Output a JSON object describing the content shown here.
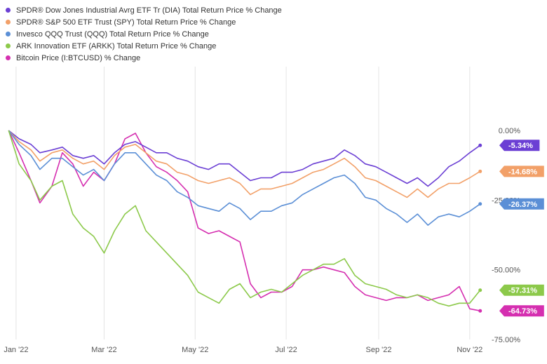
{
  "chart_data": {
    "type": "line",
    "title": "",
    "xlabel": "",
    "ylabel": "",
    "x_ticks": [
      "Jan '22",
      "Mar '22",
      "May '22",
      "Jul '22",
      "Sep '22",
      "Nov '22"
    ],
    "y_ticks": [
      "0.00%",
      "-25.00%",
      "-50.00%",
      "-75.00%"
    ],
    "ylim": [
      -75,
      0
    ],
    "grid": "vertical",
    "legend_position": "top-left",
    "series": [
      {
        "name": "SPDR® Dow Jones Industrial Avrg ETF Tr (DIA) Total Return Price % Change",
        "color": "#6b3fd4",
        "end_label": "-5.34%",
        "x": [
          "2022-01-03",
          "2022-01-10",
          "2022-01-18",
          "2022-01-24",
          "2022-02-01",
          "2022-02-08",
          "2022-02-15",
          "2022-02-22",
          "2022-03-01",
          "2022-03-08",
          "2022-03-15",
          "2022-03-22",
          "2022-03-29",
          "2022-04-05",
          "2022-04-12",
          "2022-04-19",
          "2022-04-26",
          "2022-05-03",
          "2022-05-10",
          "2022-05-17",
          "2022-05-24",
          "2022-05-31",
          "2022-06-07",
          "2022-06-14",
          "2022-06-21",
          "2022-06-28",
          "2022-07-05",
          "2022-07-12",
          "2022-07-19",
          "2022-07-26",
          "2022-08-02",
          "2022-08-09",
          "2022-08-16",
          "2022-08-23",
          "2022-08-30",
          "2022-09-06",
          "2022-09-13",
          "2022-09-20",
          "2022-09-27",
          "2022-10-04",
          "2022-10-11",
          "2022-10-18",
          "2022-10-25",
          "2022-11-01",
          "2022-11-08",
          "2022-11-15"
        ],
        "y": [
          0,
          -3,
          -5,
          -8,
          -7,
          -6,
          -9,
          -10,
          -9,
          -12,
          -8,
          -5,
          -4,
          -6,
          -8,
          -8,
          -10,
          -11,
          -13,
          -14,
          -12,
          -12,
          -15,
          -18,
          -17,
          -17,
          -15,
          -15,
          -14,
          -12,
          -11,
          -10,
          -7,
          -9,
          -12,
          -13,
          -15,
          -17,
          -19,
          -17,
          -20,
          -17,
          -13,
          -11,
          -8,
          -5.34
        ]
      },
      {
        "name": "SPDR® S&P 500 ETF Trust (SPY) Total Return Price % Change",
        "color": "#f2a068",
        "end_label": "-14.68%",
        "x": [
          "2022-01-03",
          "2022-01-10",
          "2022-01-18",
          "2022-01-24",
          "2022-02-01",
          "2022-02-08",
          "2022-02-15",
          "2022-02-22",
          "2022-03-01",
          "2022-03-08",
          "2022-03-15",
          "2022-03-22",
          "2022-03-29",
          "2022-04-05",
          "2022-04-12",
          "2022-04-19",
          "2022-04-26",
          "2022-05-03",
          "2022-05-10",
          "2022-05-17",
          "2022-05-24",
          "2022-05-31",
          "2022-06-07",
          "2022-06-14",
          "2022-06-21",
          "2022-06-28",
          "2022-07-05",
          "2022-07-12",
          "2022-07-19",
          "2022-07-26",
          "2022-08-02",
          "2022-08-09",
          "2022-08-16",
          "2022-08-23",
          "2022-08-30",
          "2022-09-06",
          "2022-09-13",
          "2022-09-20",
          "2022-09-27",
          "2022-10-04",
          "2022-10-11",
          "2022-10-18",
          "2022-10-25",
          "2022-11-01",
          "2022-11-08",
          "2022-11-15"
        ],
        "y": [
          0,
          -4,
          -7,
          -11,
          -8,
          -7,
          -10,
          -12,
          -11,
          -14,
          -9,
          -6,
          -5,
          -8,
          -11,
          -12,
          -15,
          -16,
          -18,
          -19,
          -18,
          -17,
          -19,
          -23,
          -21,
          -21,
          -20,
          -19,
          -17,
          -15,
          -14,
          -12,
          -10,
          -13,
          -17,
          -18,
          -20,
          -22,
          -24,
          -21,
          -24,
          -21,
          -19,
          -19,
          -17,
          -14.68
        ]
      },
      {
        "name": "Invesco QQQ Trust (QQQ) Total Return Price % Change",
        "color": "#5b8fd6",
        "end_label": "-26.37%",
        "x": [
          "2022-01-03",
          "2022-01-10",
          "2022-01-18",
          "2022-01-24",
          "2022-02-01",
          "2022-02-08",
          "2022-02-15",
          "2022-02-22",
          "2022-03-01",
          "2022-03-08",
          "2022-03-15",
          "2022-03-22",
          "2022-03-29",
          "2022-04-05",
          "2022-04-12",
          "2022-04-19",
          "2022-04-26",
          "2022-05-03",
          "2022-05-10",
          "2022-05-17",
          "2022-05-24",
          "2022-05-31",
          "2022-06-07",
          "2022-06-14",
          "2022-06-21",
          "2022-06-28",
          "2022-07-05",
          "2022-07-12",
          "2022-07-19",
          "2022-07-26",
          "2022-08-02",
          "2022-08-09",
          "2022-08-16",
          "2022-08-23",
          "2022-08-30",
          "2022-09-06",
          "2022-09-13",
          "2022-09-20",
          "2022-09-27",
          "2022-10-04",
          "2022-10-11",
          "2022-10-18",
          "2022-10-25",
          "2022-11-01",
          "2022-11-08",
          "2022-11-15"
        ],
        "y": [
          0,
          -5,
          -9,
          -14,
          -10,
          -10,
          -13,
          -16,
          -14,
          -18,
          -12,
          -8,
          -8,
          -12,
          -16,
          -18,
          -22,
          -24,
          -27,
          -28,
          -29,
          -26,
          -28,
          -32,
          -29,
          -29,
          -27,
          -26,
          -23,
          -21,
          -19,
          -17,
          -16,
          -19,
          -24,
          -25,
          -28,
          -30,
          -33,
          -30,
          -34,
          -31,
          -30,
          -31,
          -29,
          -26.37
        ]
      },
      {
        "name": "ARK Innovation ETF (ARKK) Total Return Price % Change",
        "color": "#8cc94a",
        "end_label": "-57.31%",
        "x": [
          "2022-01-03",
          "2022-01-10",
          "2022-01-18",
          "2022-01-24",
          "2022-02-01",
          "2022-02-08",
          "2022-02-15",
          "2022-02-22",
          "2022-03-01",
          "2022-03-08",
          "2022-03-15",
          "2022-03-22",
          "2022-03-29",
          "2022-04-05",
          "2022-04-12",
          "2022-04-19",
          "2022-04-26",
          "2022-05-03",
          "2022-05-10",
          "2022-05-17",
          "2022-05-24",
          "2022-05-31",
          "2022-06-07",
          "2022-06-14",
          "2022-06-21",
          "2022-06-28",
          "2022-07-05",
          "2022-07-12",
          "2022-07-19",
          "2022-07-26",
          "2022-08-02",
          "2022-08-09",
          "2022-08-16",
          "2022-08-23",
          "2022-08-30",
          "2022-09-06",
          "2022-09-13",
          "2022-09-20",
          "2022-09-27",
          "2022-10-04",
          "2022-10-11",
          "2022-10-18",
          "2022-10-25",
          "2022-11-01",
          "2022-11-08",
          "2022-11-15"
        ],
        "y": [
          0,
          -12,
          -18,
          -25,
          -20,
          -18,
          -30,
          -35,
          -38,
          -44,
          -36,
          -30,
          -27,
          -36,
          -40,
          -44,
          -48,
          -52,
          -58,
          -60,
          -62,
          -57,
          -55,
          -60,
          -58,
          -57,
          -58,
          -55,
          -52,
          -50,
          -48,
          -48,
          -46,
          -52,
          -55,
          -56,
          -57,
          -59,
          -60,
          -59,
          -60,
          -62,
          -63,
          -62,
          -62,
          -57.31
        ]
      },
      {
        "name": "Bitcoin Price (I:BTCUSD) % Change",
        "color": "#d52fb0",
        "end_label": "-64.73%",
        "x": [
          "2022-01-03",
          "2022-01-10",
          "2022-01-18",
          "2022-01-24",
          "2022-02-01",
          "2022-02-08",
          "2022-02-15",
          "2022-02-22",
          "2022-03-01",
          "2022-03-08",
          "2022-03-15",
          "2022-03-22",
          "2022-03-29",
          "2022-04-05",
          "2022-04-12",
          "2022-04-19",
          "2022-04-26",
          "2022-05-03",
          "2022-05-10",
          "2022-05-17",
          "2022-05-24",
          "2022-05-31",
          "2022-06-07",
          "2022-06-14",
          "2022-06-21",
          "2022-06-28",
          "2022-07-05",
          "2022-07-12",
          "2022-07-19",
          "2022-07-26",
          "2022-08-02",
          "2022-08-09",
          "2022-08-16",
          "2022-08-23",
          "2022-08-30",
          "2022-09-06",
          "2022-09-13",
          "2022-09-20",
          "2022-09-27",
          "2022-10-04",
          "2022-10-11",
          "2022-10-18",
          "2022-10-25",
          "2022-11-01",
          "2022-11-08",
          "2022-11-15"
        ],
        "y": [
          0,
          -8,
          -18,
          -26,
          -20,
          -8,
          -12,
          -20,
          -15,
          -18,
          -12,
          -3,
          -1,
          -8,
          -13,
          -15,
          -18,
          -22,
          -35,
          -37,
          -36,
          -38,
          -40,
          -55,
          -60,
          -58,
          -58,
          -56,
          -50,
          -50,
          -49,
          -50,
          -51,
          -56,
          -59,
          -60,
          -61,
          -60,
          -60,
          -59,
          -61,
          -60,
          -59,
          -56,
          -64,
          -64.73
        ]
      }
    ]
  }
}
